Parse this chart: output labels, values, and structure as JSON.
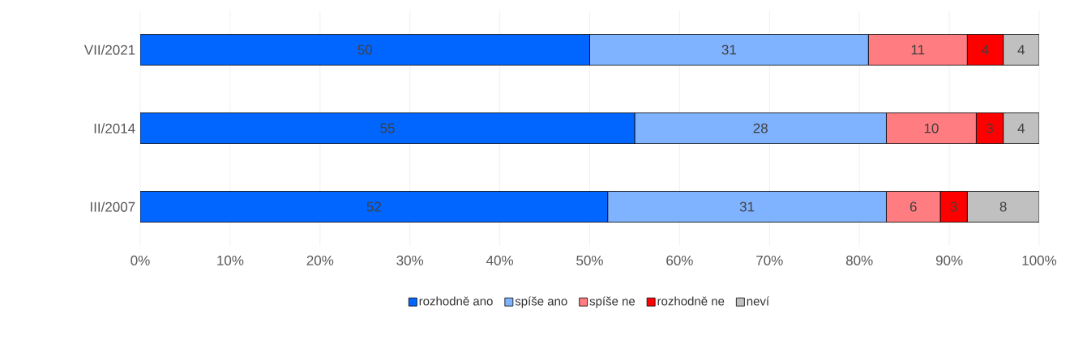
{
  "chart_data": {
    "type": "bar",
    "orientation": "horizontal",
    "stacked": true,
    "data_labels": true,
    "grid": "x",
    "legend": "bottom",
    "categories": [
      "VII/2021",
      "II/2014",
      "III/2007"
    ],
    "series": [
      {
        "name": "rozhodně ano",
        "color": "#0066ff",
        "values": [
          50,
          55,
          52
        ]
      },
      {
        "name": "spíše ano",
        "color": "#7fb2ff",
        "values": [
          31,
          28,
          31
        ]
      },
      {
        "name": "spíše ne",
        "color": "#ff7c80",
        "values": [
          11,
          10,
          6
        ]
      },
      {
        "name": "rozhodně ne",
        "color": "#ff0000",
        "values": [
          4,
          3,
          3
        ]
      },
      {
        "name": "neví",
        "color": "#c0c0c0",
        "values": [
          4,
          4,
          8
        ]
      }
    ],
    "xlim": [
      0,
      100
    ],
    "xticks": [
      {
        "value": 0,
        "label": "0%"
      },
      {
        "value": 10,
        "label": "10%"
      },
      {
        "value": 20,
        "label": "20%"
      },
      {
        "value": 30,
        "label": "30%"
      },
      {
        "value": 40,
        "label": "40%"
      },
      {
        "value": 50,
        "label": "50%"
      },
      {
        "value": 60,
        "label": "60%"
      },
      {
        "value": 70,
        "label": "70%"
      },
      {
        "value": 80,
        "label": "80%"
      },
      {
        "value": 90,
        "label": "90%"
      },
      {
        "value": 100,
        "label": "100%"
      }
    ]
  }
}
